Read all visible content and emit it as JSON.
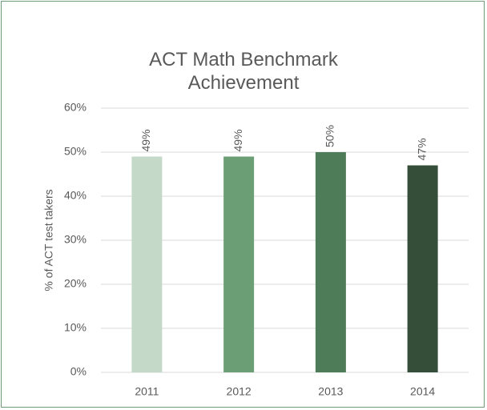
{
  "chart_data": {
    "type": "bar",
    "title": "ACT Math Benchmark Achievement",
    "y_label": "% of ACT test takers",
    "categories": [
      "2011",
      "2012",
      "2013",
      "2014"
    ],
    "values": [
      49,
      49,
      50,
      47
    ],
    "value_labels": [
      "49%",
      "49%",
      "50%",
      "47%"
    ],
    "colors": [
      "#c5d9c8",
      "#6c9e76",
      "#4e7b58",
      "#344e3a"
    ],
    "ylim": [
      0,
      60
    ],
    "yticks": [
      {
        "value": 0,
        "label": "0%"
      },
      {
        "value": 10,
        "label": "10%"
      },
      {
        "value": 20,
        "label": "20%"
      },
      {
        "value": 30,
        "label": "30%"
      },
      {
        "value": 40,
        "label": "40%"
      },
      {
        "value": 50,
        "label": "50%"
      },
      {
        "value": 60,
        "label": "60%"
      }
    ],
    "grid": true
  }
}
